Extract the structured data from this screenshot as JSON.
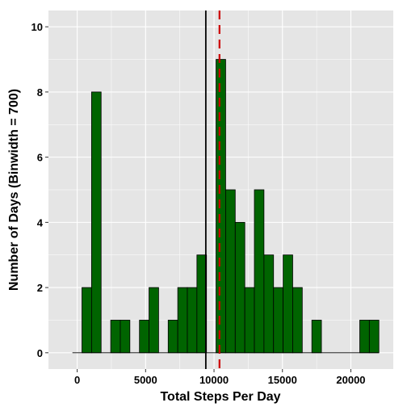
{
  "chart_data": {
    "type": "bar",
    "subtype": "histogram",
    "xlabel": "Total Steps Per Day",
    "ylabel": "Number of Days (Binwidth = 700)",
    "binwidth": 700,
    "xlim": [
      -2100,
      23100
    ],
    "ylim": [
      -0.5,
      10.5
    ],
    "xticks": [
      0,
      5000,
      10000,
      15000,
      20000
    ],
    "yticks": [
      0,
      2,
      4,
      6,
      8,
      10
    ],
    "grid": true,
    "bins": [
      {
        "x0": -350,
        "x1": 350,
        "count": 0
      },
      {
        "x0": 350,
        "x1": 1050,
        "count": 2
      },
      {
        "x0": 1050,
        "x1": 1750,
        "count": 8
      },
      {
        "x0": 1750,
        "x1": 2450,
        "count": 0
      },
      {
        "x0": 2450,
        "x1": 3150,
        "count": 1
      },
      {
        "x0": 3150,
        "x1": 3850,
        "count": 1
      },
      {
        "x0": 3850,
        "x1": 4550,
        "count": 0
      },
      {
        "x0": 4550,
        "x1": 5250,
        "count": 1
      },
      {
        "x0": 5250,
        "x1": 5950,
        "count": 2
      },
      {
        "x0": 5950,
        "x1": 6650,
        "count": 0
      },
      {
        "x0": 6650,
        "x1": 7350,
        "count": 1
      },
      {
        "x0": 7350,
        "x1": 8050,
        "count": 2
      },
      {
        "x0": 8050,
        "x1": 8750,
        "count": 2
      },
      {
        "x0": 8750,
        "x1": 9450,
        "count": 3
      },
      {
        "x0": 9450,
        "x1": 10150,
        "count": 0
      },
      {
        "x0": 10150,
        "x1": 10850,
        "count": 9
      },
      {
        "x0": 10850,
        "x1": 11550,
        "count": 5
      },
      {
        "x0": 11550,
        "x1": 12250,
        "count": 4
      },
      {
        "x0": 12250,
        "x1": 12950,
        "count": 2
      },
      {
        "x0": 12950,
        "x1": 13650,
        "count": 5
      },
      {
        "x0": 13650,
        "x1": 14350,
        "count": 3
      },
      {
        "x0": 14350,
        "x1": 15050,
        "count": 2
      },
      {
        "x0": 15050,
        "x1": 15750,
        "count": 3
      },
      {
        "x0": 15750,
        "x1": 16450,
        "count": 2
      },
      {
        "x0": 16450,
        "x1": 17150,
        "count": 0
      },
      {
        "x0": 17150,
        "x1": 17850,
        "count": 1
      },
      {
        "x0": 17850,
        "x1": 18550,
        "count": 0
      },
      {
        "x0": 18550,
        "x1": 19250,
        "count": 0
      },
      {
        "x0": 19250,
        "x1": 19950,
        "count": 0
      },
      {
        "x0": 19950,
        "x1": 20650,
        "count": 0
      },
      {
        "x0": 20650,
        "x1": 21350,
        "count": 1
      },
      {
        "x0": 21350,
        "x1": 22050,
        "count": 1
      }
    ],
    "reference_lines": [
      {
        "x": 9400,
        "style": "solid",
        "color": "#000000"
      },
      {
        "x": 10400,
        "style": "dashed",
        "color": "#cc0000"
      }
    ],
    "colors": {
      "bar_fill": "#006400",
      "bar_border": "#000000",
      "panel_background": "#e5e5e5",
      "grid": "#ffffff"
    }
  }
}
